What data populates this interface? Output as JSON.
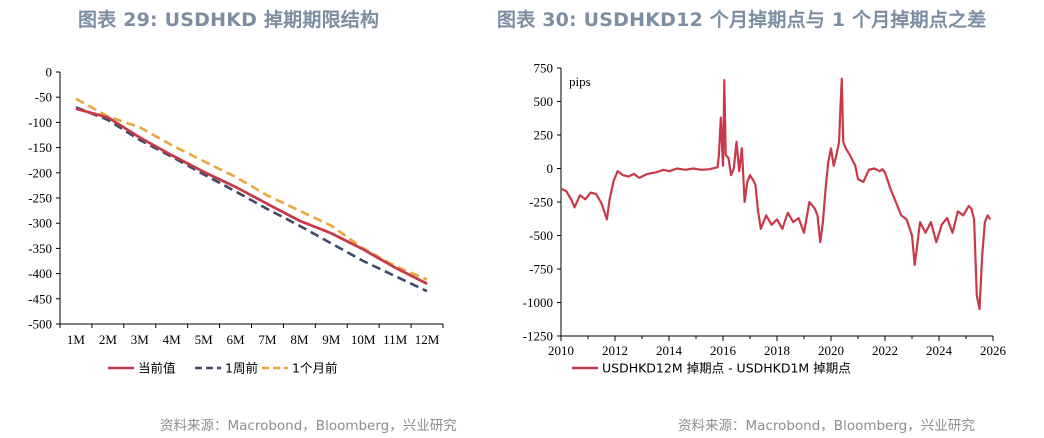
{
  "title_left": "图表 29: USDHKD 掉期期限结构",
  "title_right": "图表 30: USDHKD12 个月掉期点与 1 个月掉期点之差",
  "source_left": "资料来源：Macrobond，Bloomberg，兴业研究",
  "source_right": "资料来源：Macrobond，Bloomberg，兴业研究",
  "colors": {
    "red": "#c8394a",
    "navy": "#3d4b66",
    "orange": "#e9a73a"
  },
  "chart_data": [
    {
      "type": "line",
      "title": "USDHKD 掉期期限结构",
      "categories": [
        "1M",
        "2M",
        "3M",
        "4M",
        "5M",
        "6M",
        "7M",
        "8M",
        "9M",
        "10M",
        "11M",
        "12M"
      ],
      "ylim": [
        -500,
        0
      ],
      "yticks": [
        0,
        -50,
        -100,
        -150,
        -200,
        -250,
        -300,
        -350,
        -400,
        -450,
        -500
      ],
      "legend_position": "bottom",
      "series": [
        {
          "name": "当前值",
          "color": "#c8394a",
          "dash": "solid",
          "values": [
            -73,
            -90,
            -130,
            -165,
            -198,
            -228,
            -262,
            -295,
            -320,
            -352,
            -388,
            -420
          ]
        },
        {
          "name": "1周前",
          "color": "#3d4b66",
          "dash": "dashed",
          "values": [
            -70,
            -95,
            -135,
            -168,
            -203,
            -237,
            -272,
            -305,
            -340,
            -375,
            -405,
            -435
          ]
        },
        {
          "name": "1个月前",
          "color": "#e9a73a",
          "dash": "dashed",
          "values": [
            -53,
            -88,
            -110,
            -145,
            -177,
            -208,
            -245,
            -275,
            -305,
            -350,
            -385,
            -412
          ]
        }
      ]
    },
    {
      "type": "line",
      "title": "USDHKD12 个月掉期点与 1 个月掉期点之差",
      "ylabel": "pips",
      "xlim": [
        2010,
        2026
      ],
      "xticks": [
        2010,
        2012,
        2014,
        2016,
        2018,
        2020,
        2022,
        2024,
        2026
      ],
      "ylim": [
        -1250,
        750
      ],
      "yticks": [
        750,
        500,
        250,
        0,
        -250,
        -500,
        -750,
        -1000,
        -1250
      ],
      "legend_position": "bottom",
      "series": [
        {
          "name": "USDHKD12M 掉期点 - USDHKD1M 掉期点",
          "color": "#c8394a",
          "x": [
            2010.0,
            2010.2,
            2010.4,
            2010.5,
            2010.7,
            2010.9,
            2011.1,
            2011.3,
            2011.5,
            2011.7,
            2011.8,
            2011.95,
            2012.1,
            2012.3,
            2012.5,
            2012.7,
            2012.9,
            2013.2,
            2013.5,
            2013.8,
            2014.0,
            2014.3,
            2014.6,
            2014.9,
            2015.2,
            2015.5,
            2015.8,
            2015.85,
            2015.92,
            2016.0,
            2016.05,
            2016.1,
            2016.2,
            2016.3,
            2016.4,
            2016.5,
            2016.6,
            2016.7,
            2016.8,
            2016.9,
            2017.0,
            2017.1,
            2017.2,
            2017.3,
            2017.4,
            2017.6,
            2017.8,
            2018.0,
            2018.2,
            2018.4,
            2018.6,
            2018.8,
            2019.0,
            2019.2,
            2019.4,
            2019.5,
            2019.6,
            2019.7,
            2019.8,
            2019.9,
            2020.0,
            2020.1,
            2020.2,
            2020.3,
            2020.35,
            2020.4,
            2020.45,
            2020.55,
            2020.7,
            2020.9,
            2021.0,
            2021.2,
            2021.4,
            2021.6,
            2021.8,
            2021.9,
            2022.0,
            2022.2,
            2022.4,
            2022.6,
            2022.8,
            2023.0,
            2023.1,
            2023.3,
            2023.5,
            2023.7,
            2023.9,
            2024.1,
            2024.3,
            2024.5,
            2024.7,
            2024.9,
            2025.1,
            2025.2,
            2025.3,
            2025.4,
            2025.5,
            2025.6,
            2025.7,
            2025.8,
            2025.9
          ],
          "y": [
            -150,
            -170,
            -240,
            -290,
            -200,
            -230,
            -180,
            -190,
            -260,
            -380,
            -230,
            -90,
            -20,
            -50,
            -60,
            -40,
            -70,
            -40,
            -30,
            -10,
            -20,
            0,
            -10,
            0,
            -10,
            -5,
            10,
            100,
            380,
            20,
            660,
            100,
            80,
            -50,
            0,
            200,
            -20,
            150,
            -250,
            -100,
            -50,
            -80,
            -120,
            -320,
            -450,
            -350,
            -420,
            -380,
            -450,
            -330,
            -400,
            -370,
            -480,
            -250,
            -300,
            -350,
            -550,
            -400,
            -150,
            50,
            150,
            20,
            100,
            200,
            450,
            670,
            200,
            150,
            100,
            20,
            -80,
            -100,
            -10,
            0,
            -20,
            -5,
            -30,
            -150,
            -250,
            -350,
            -380,
            -500,
            -720,
            -400,
            -480,
            -400,
            -550,
            -420,
            -370,
            -480,
            -320,
            -350,
            -280,
            -300,
            -380,
            -950,
            -1050,
            -650,
            -400,
            -350,
            -380
          ]
        }
      ]
    }
  ]
}
